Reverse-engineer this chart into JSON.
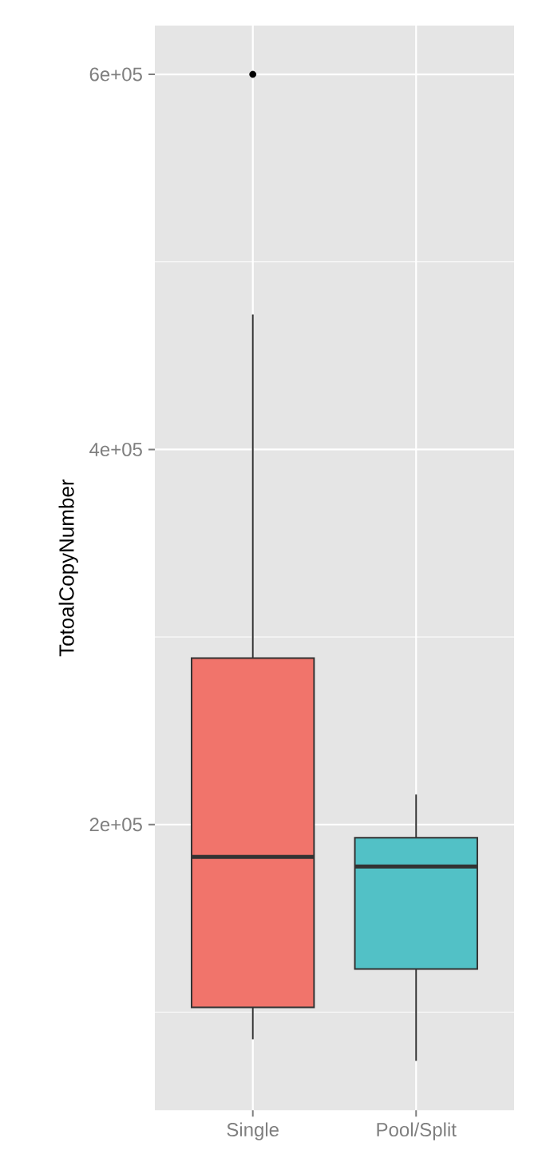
{
  "chart_data": {
    "type": "box",
    "ylabel": "TotoalCopyNumber",
    "categories": [
      "Single",
      "Pool/Split"
    ],
    "colors": [
      "#f1746b",
      "#52c1c6"
    ],
    "boxes": [
      {
        "low": 85500,
        "q1": 102500,
        "median": 182700,
        "q3": 288700,
        "high": 472000,
        "outliers": [
          600000
        ]
      },
      {
        "low": 74000,
        "q1": 123000,
        "median": 177600,
        "q3": 193000,
        "high": 216000
      }
    ],
    "ylim": [
      47600,
      626000
    ],
    "yticks": [
      {
        "value": 100000,
        "label": null
      },
      {
        "value": 200000,
        "label": "2e+05"
      },
      {
        "value": 300000,
        "label": null
      },
      {
        "value": 400000,
        "label": "4e+05"
      },
      {
        "value": 500000,
        "label": null
      },
      {
        "value": 600000,
        "label": "6e+05"
      }
    ],
    "grid": true
  }
}
